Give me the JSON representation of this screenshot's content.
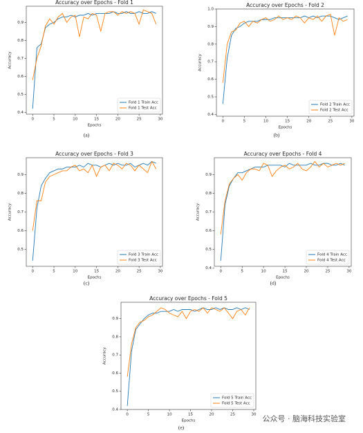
{
  "chart_data": [
    {
      "type": "line",
      "title": "Accuracy over Epochs - Fold 1",
      "x_label": "Epochs",
      "y_label": "Accuracy",
      "caption": "(a)",
      "x": [
        0,
        1,
        2,
        3,
        4,
        5,
        6,
        7,
        8,
        9,
        10,
        11,
        12,
        13,
        14,
        15,
        16,
        17,
        18,
        19,
        20,
        21,
        22,
        23,
        24,
        25,
        26,
        27,
        28,
        29
      ],
      "series": [
        {
          "name": "Fold 1 Train Acc",
          "color": "#1f77b4",
          "values": [
            0.42,
            0.76,
            0.78,
            0.87,
            0.89,
            0.9,
            0.92,
            0.93,
            0.93,
            0.94,
            0.93,
            0.94,
            0.94,
            0.95,
            0.94,
            0.95,
            0.95,
            0.95,
            0.95,
            0.96,
            0.95,
            0.95,
            0.96,
            0.95,
            0.95,
            0.96,
            0.95,
            0.95,
            0.96,
            0.95
          ]
        },
        {
          "name": "Fold 1 Test Acc",
          "color": "#ff7f0e",
          "values": [
            0.58,
            0.7,
            0.77,
            0.88,
            0.92,
            0.89,
            0.93,
            0.95,
            0.9,
            0.93,
            0.94,
            0.82,
            0.93,
            0.92,
            0.95,
            0.94,
            0.85,
            0.95,
            0.96,
            0.96,
            0.94,
            0.96,
            0.95,
            0.96,
            0.95,
            0.89,
            0.97,
            0.96,
            0.95,
            0.89
          ]
        }
      ],
      "xlim": [
        -1.5,
        30.5
      ],
      "ylim": [
        0.39,
        0.99
      ],
      "xticks": [
        0,
        5,
        10,
        15,
        20,
        25,
        30
      ],
      "yticks": [
        0.4,
        0.5,
        0.6,
        0.7,
        0.8,
        0.9
      ],
      "legend": "lower right"
    },
    {
      "type": "line",
      "title": "Accuracy over Epochs - Fold 2",
      "x_label": "Epochs",
      "y_label": "Accuracy",
      "caption": "(b)",
      "x": [
        0,
        1,
        2,
        3,
        4,
        5,
        6,
        7,
        8,
        9,
        10,
        11,
        12,
        13,
        14,
        15,
        16,
        17,
        18,
        19,
        20,
        21,
        22,
        23,
        24,
        25,
        26,
        27,
        28,
        29
      ],
      "series": [
        {
          "name": "Fold 2 Train Acc",
          "color": "#1f77b4",
          "values": [
            0.46,
            0.72,
            0.85,
            0.89,
            0.9,
            0.92,
            0.93,
            0.93,
            0.93,
            0.94,
            0.94,
            0.94,
            0.95,
            0.95,
            0.95,
            0.95,
            0.95,
            0.95,
            0.95,
            0.96,
            0.95,
            0.96,
            0.95,
            0.96,
            0.96,
            0.96,
            0.95,
            0.94,
            0.95,
            0.96
          ]
        },
        {
          "name": "Fold 2 Test Acc",
          "color": "#ff7f0e",
          "values": [
            0.58,
            0.8,
            0.87,
            0.88,
            0.92,
            0.93,
            0.9,
            0.93,
            0.92,
            0.94,
            0.95,
            0.93,
            0.94,
            0.96,
            0.94,
            0.95,
            0.94,
            0.96,
            0.95,
            0.92,
            0.95,
            0.94,
            0.96,
            0.93,
            0.96,
            0.97,
            0.85,
            0.95,
            0.93,
            0.94
          ]
        }
      ],
      "xlim": [
        -1.5,
        30.5
      ],
      "ylim": [
        0.39,
        1.0
      ],
      "xticks": [
        0,
        5,
        10,
        15,
        20,
        25,
        30
      ],
      "yticks": [
        0.4,
        0.5,
        0.6,
        0.7,
        0.8,
        0.9,
        {
          "value": 1,
          "label": "1.0"
        }
      ],
      "legend": "lower right"
    },
    {
      "type": "line",
      "title": "Accuracy over Epochs - Fold 3",
      "x_label": "Epochs",
      "y_label": "Accuracy",
      "caption": "(c)",
      "x": [
        0,
        1,
        2,
        3,
        4,
        5,
        6,
        7,
        8,
        9,
        10,
        11,
        12,
        13,
        14,
        15,
        16,
        17,
        18,
        19,
        20,
        21,
        22,
        23,
        24,
        25,
        26,
        27,
        28,
        29
      ],
      "series": [
        {
          "name": "Fold 3 Train Acc",
          "color": "#1f77b4",
          "values": [
            0.44,
            0.72,
            0.84,
            0.88,
            0.91,
            0.92,
            0.93,
            0.93,
            0.94,
            0.94,
            0.94,
            0.95,
            0.94,
            0.96,
            0.95,
            0.95,
            0.94,
            0.95,
            0.96,
            0.95,
            0.96,
            0.95,
            0.95,
            0.96,
            0.94,
            0.95,
            0.96,
            0.95,
            0.97,
            0.96
          ]
        },
        {
          "name": "Fold 3 Test Acc",
          "color": "#ff7f0e",
          "values": [
            0.6,
            0.76,
            0.76,
            0.86,
            0.89,
            0.9,
            0.91,
            0.92,
            0.92,
            0.94,
            0.95,
            0.92,
            0.93,
            0.91,
            0.95,
            0.89,
            0.94,
            0.95,
            0.92,
            0.96,
            0.95,
            0.93,
            0.96,
            0.95,
            0.92,
            0.95,
            0.93,
            0.91,
            0.97,
            0.93
          ]
        }
      ],
      "xlim": [
        -1.5,
        30.5
      ],
      "ylim": [
        0.41,
        0.99
      ],
      "xticks": [
        0,
        5,
        10,
        15,
        20,
        25,
        30
      ],
      "yticks": [
        0.5,
        0.6,
        0.7,
        0.8,
        0.9
      ],
      "legend": "lower right"
    },
    {
      "type": "line",
      "title": "Accuracy over Epochs - Fold 4",
      "x_label": "Epochs",
      "y_label": "Accuracy",
      "caption": "(d)",
      "x": [
        0,
        1,
        2,
        3,
        4,
        5,
        6,
        7,
        8,
        9,
        10,
        11,
        12,
        13,
        14,
        15,
        16,
        17,
        18,
        19,
        20,
        21,
        22,
        23,
        24,
        25,
        26,
        27,
        28,
        29
      ],
      "series": [
        {
          "name": "Fold 4 Train Acc",
          "color": "#1f77b4",
          "values": [
            0.44,
            0.74,
            0.84,
            0.88,
            0.91,
            0.91,
            0.92,
            0.93,
            0.94,
            0.94,
            0.94,
            0.95,
            0.95,
            0.95,
            0.95,
            0.94,
            0.96,
            0.95,
            0.95,
            0.95,
            0.95,
            0.96,
            0.95,
            0.95,
            0.96,
            0.96,
            0.95,
            0.95,
            0.96,
            0.95
          ]
        },
        {
          "name": "Fold 4 Test Acc",
          "color": "#ff7f0e",
          "values": [
            0.58,
            0.76,
            0.85,
            0.88,
            0.9,
            0.87,
            0.91,
            0.93,
            0.93,
            0.92,
            0.96,
            0.95,
            0.89,
            0.92,
            0.94,
            0.95,
            0.93,
            0.94,
            0.96,
            0.93,
            0.92,
            0.94,
            0.97,
            0.94,
            0.96,
            0.94,
            0.95,
            0.96,
            0.95,
            0.96
          ]
        }
      ],
      "xlim": [
        -1.5,
        30.5
      ],
      "ylim": [
        0.41,
        0.99
      ],
      "xticks": [
        0,
        5,
        10,
        15,
        20,
        25,
        30
      ],
      "yticks": [
        0.4,
        0.5,
        0.6,
        0.7,
        0.8,
        0.9
      ],
      "legend": "lower right"
    },
    {
      "type": "line",
      "title": "Accuracy over Epochs - Fold 5",
      "x_label": "Epochs",
      "y_label": "Accuracy",
      "caption": "(e)",
      "x": [
        0,
        1,
        2,
        3,
        4,
        5,
        6,
        7,
        8,
        9,
        10,
        11,
        12,
        13,
        14,
        15,
        16,
        17,
        18,
        19,
        20,
        21,
        22,
        23,
        24,
        25,
        26,
        27,
        28,
        29
      ],
      "series": [
        {
          "name": "Fold 5 Train Acc",
          "color": "#1f77b4",
          "values": [
            0.42,
            0.72,
            0.84,
            0.87,
            0.9,
            0.92,
            0.93,
            0.93,
            0.94,
            0.94,
            0.94,
            0.95,
            0.94,
            0.95,
            0.95,
            0.95,
            0.94,
            0.95,
            0.96,
            0.95,
            0.95,
            0.96,
            0.95,
            0.96,
            0.95,
            0.95,
            0.96,
            0.95,
            0.96,
            0.95
          ]
        },
        {
          "name": "Fold 5 Test Acc",
          "color": "#ff7f0e",
          "values": [
            0.58,
            0.76,
            0.85,
            0.88,
            0.89,
            0.91,
            0.92,
            0.94,
            0.96,
            0.95,
            0.93,
            0.92,
            0.91,
            0.94,
            0.9,
            0.94,
            0.95,
            0.94,
            0.96,
            0.93,
            0.96,
            0.95,
            0.94,
            0.96,
            0.93,
            0.9,
            0.94,
            0.95,
            0.92,
            0.96
          ]
        }
      ],
      "xlim": [
        -1.5,
        30.5
      ],
      "ylim": [
        0.4,
        0.99
      ],
      "xticks": [
        0,
        5,
        10,
        15,
        20,
        25,
        30
      ],
      "yticks": [
        0.4,
        0.5,
        0.6,
        0.7,
        0.8,
        0.9
      ],
      "legend": "lower right"
    }
  ],
  "watermark": "公众号 · 脑海科技实验室"
}
